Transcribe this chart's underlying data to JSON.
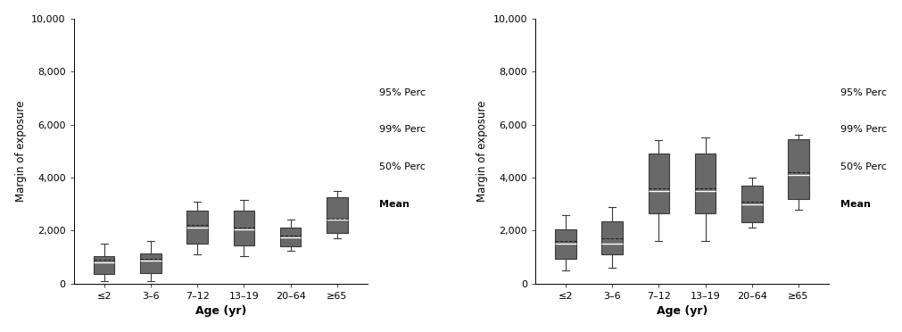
{
  "categories": [
    "≤2",
    "3–6",
    "7–12",
    "13–19",
    "20–64",
    "≥65"
  ],
  "chart1": {
    "q1": [
      350,
      400,
      1500,
      1450,
      1400,
      1900
    ],
    "q3": [
      1050,
      1150,
      2750,
      2750,
      2100,
      3250
    ],
    "median": [
      800,
      850,
      2100,
      2050,
      1750,
      2400
    ],
    "mean": [
      900,
      950,
      2200,
      2100,
      1800,
      2450
    ],
    "whisker_low": [
      100,
      100,
      1100,
      1050,
      1250,
      1700
    ],
    "whisker_high": [
      1500,
      1600,
      3100,
      3150,
      2400,
      3500
    ]
  },
  "chart2": {
    "q1": [
      950,
      1100,
      2650,
      2650,
      2300,
      3200
    ],
    "q3": [
      2050,
      2350,
      4900,
      4900,
      3700,
      5450
    ],
    "median": [
      1500,
      1500,
      3500,
      3500,
      3000,
      4100
    ],
    "mean": [
      1600,
      1700,
      3600,
      3600,
      3100,
      4200
    ],
    "whisker_low": [
      500,
      600,
      1600,
      1600,
      2100,
      2800
    ],
    "whisker_high": [
      2600,
      2900,
      5400,
      5500,
      4000,
      5600
    ]
  },
  "ylim": [
    0,
    10000
  ],
  "yticks": [
    0,
    2000,
    4000,
    6000,
    8000,
    10000
  ],
  "ytick_labels": [
    "0",
    "2,000",
    "4,000",
    "6,000",
    "8,000",
    "10,000"
  ],
  "ylabel": "Margin of exposure",
  "xlabel": "Age (yr)",
  "box_color": "#696969",
  "box_edge_color": "#3a3a3a",
  "whisker_color": "#3a3a3a",
  "mean_marker_color": "#1a1a1a",
  "legend_labels": [
    "95% Perc",
    "99% Perc",
    "50% Perc",
    "Mean"
  ],
  "bar_width": 0.45
}
